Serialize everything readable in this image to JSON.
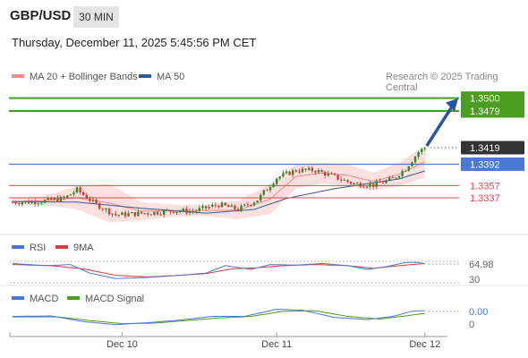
{
  "header": {
    "pair": "GBP/USD",
    "timeframe": "30 MIN",
    "datetime": "Thursday, December 11, 2025 5:45:56 PM CET"
  },
  "legend": {
    "bb": "MA 20 + Bollinger Bands",
    "ma50": "MA 50",
    "credit": "Research © 2025 Trading Central"
  },
  "rsi_legend": {
    "rsi": "RSI",
    "ma": "9MA"
  },
  "macd_legend": {
    "macd": "MACD",
    "signal": "MACD Signal"
  },
  "colors": {
    "resistance": "#4a9d1f",
    "support": "#e8414a",
    "pivot": "#4a78d6",
    "current": "#333333",
    "ma50": "#2f5b8f",
    "bb": "#f4a0a0",
    "up": "#2d8a2d",
    "down": "#d63a3a",
    "arrow": "#2856a0",
    "rsi": "#4a78d6",
    "rsi_ma": "#d63a3a",
    "macd": "#4a78d6",
    "macd_signal": "#4a9d1f"
  },
  "chart_data": [
    {
      "type": "candlestick",
      "title": "GBP/USD 30 MIN",
      "ylim": [
        1.328,
        1.352
      ],
      "x_ticks": [
        {
          "i": 34,
          "label": "Dec 10"
        },
        {
          "i": 82,
          "label": "Dec 11"
        },
        {
          "i": 128,
          "label": "Dec 12"
        }
      ],
      "levels": [
        {
          "value": 1.35,
          "label": "1.3500",
          "kind": "resistance"
        },
        {
          "value": 1.3479,
          "label": "1.3479",
          "kind": "resistance"
        },
        {
          "value": 1.3419,
          "label": "1.3419",
          "kind": "current"
        },
        {
          "value": 1.3392,
          "label": "1.3392",
          "kind": "pivot"
        },
        {
          "value": 1.3357,
          "label": "1.3357",
          "kind": "support"
        },
        {
          "value": 1.3337,
          "label": "1.3337",
          "kind": "support"
        }
      ],
      "forecast": {
        "from": [
          1.3419
        ],
        "to": [
          1.35
        ]
      },
      "close_points": [
        [
          0,
          1.333
        ],
        [
          8,
          1.3331
        ],
        [
          16,
          1.3336
        ],
        [
          20,
          1.335
        ],
        [
          26,
          1.3326
        ],
        [
          32,
          1.3309
        ],
        [
          38,
          1.3311
        ],
        [
          44,
          1.3313
        ],
        [
          50,
          1.3316
        ],
        [
          56,
          1.3315
        ],
        [
          64,
          1.3326
        ],
        [
          70,
          1.3318
        ],
        [
          76,
          1.3334
        ],
        [
          82,
          1.337
        ],
        [
          88,
          1.3382
        ],
        [
          94,
          1.3382
        ],
        [
          100,
          1.3371
        ],
        [
          106,
          1.336
        ],
        [
          112,
          1.3358
        ],
        [
          118,
          1.3368
        ],
        [
          122,
          1.3385
        ],
        [
          126,
          1.3412
        ],
        [
          128,
          1.3419
        ]
      ],
      "ma50_points": [
        [
          0,
          1.3331
        ],
        [
          20,
          1.333
        ],
        [
          40,
          1.332
        ],
        [
          60,
          1.3312
        ],
        [
          75,
          1.3318
        ],
        [
          85,
          1.3336
        ],
        [
          100,
          1.3352
        ],
        [
          110,
          1.336
        ],
        [
          120,
          1.3368
        ],
        [
          128,
          1.3381
        ]
      ],
      "bb_upper_points": [
        [
          0,
          1.3336
        ],
        [
          10,
          1.334
        ],
        [
          20,
          1.3356
        ],
        [
          30,
          1.336
        ],
        [
          40,
          1.333
        ],
        [
          50,
          1.3326
        ],
        [
          60,
          1.3326
        ],
        [
          70,
          1.3332
        ],
        [
          80,
          1.336
        ],
        [
          88,
          1.3392
        ],
        [
          96,
          1.3394
        ],
        [
          104,
          1.3392
        ],
        [
          112,
          1.3378
        ],
        [
          120,
          1.3395
        ],
        [
          128,
          1.3422
        ]
      ],
      "bb_lower_points": [
        [
          0,
          1.3325
        ],
        [
          10,
          1.3325
        ],
        [
          20,
          1.3318
        ],
        [
          30,
          1.3297
        ],
        [
          40,
          1.33
        ],
        [
          50,
          1.3306
        ],
        [
          60,
          1.3307
        ],
        [
          70,
          1.3302
        ],
        [
          80,
          1.331
        ],
        [
          88,
          1.3352
        ],
        [
          96,
          1.3361
        ],
        [
          104,
          1.3356
        ],
        [
          112,
          1.3349
        ],
        [
          120,
          1.3356
        ],
        [
          128,
          1.337
        ]
      ]
    },
    {
      "type": "line",
      "title": "RSI",
      "ylim": [
        30,
        80
      ],
      "reference_lines": [
        70,
        30
      ],
      "labels": [
        "64.98",
        "30"
      ],
      "series": [
        {
          "name": "RSI",
          "points": [
            [
              0,
              66
            ],
            [
              10,
              62
            ],
            [
              18,
              64
            ],
            [
              24,
              48
            ],
            [
              32,
              38
            ],
            [
              42,
              40
            ],
            [
              52,
              44
            ],
            [
              60,
              48
            ],
            [
              66,
              62
            ],
            [
              74,
              55
            ],
            [
              80,
              64
            ],
            [
              88,
              63
            ],
            [
              96,
              66
            ],
            [
              104,
              62
            ],
            [
              110,
              55
            ],
            [
              116,
              60
            ],
            [
              122,
              68
            ],
            [
              126,
              68
            ],
            [
              128,
              65
            ]
          ]
        },
        {
          "name": "9MA",
          "points": [
            [
              0,
              64
            ],
            [
              12,
              62
            ],
            [
              22,
              56
            ],
            [
              32,
              44
            ],
            [
              42,
              41
            ],
            [
              52,
              44
            ],
            [
              60,
              47
            ],
            [
              68,
              56
            ],
            [
              76,
              58
            ],
            [
              84,
              62
            ],
            [
              94,
              64
            ],
            [
              104,
              62
            ],
            [
              112,
              57
            ],
            [
              120,
              62
            ],
            [
              128,
              66
            ]
          ]
        }
      ]
    },
    {
      "type": "line",
      "title": "MACD",
      "ylim": [
        -0.003,
        0.0022
      ],
      "labels": [
        "0.00",
        "0"
      ],
      "series": [
        {
          "name": "MACD",
          "points": [
            [
              0,
              0.0002
            ],
            [
              12,
              0.0003
            ],
            [
              22,
              -0.0008
            ],
            [
              32,
              -0.0014
            ],
            [
              42,
              -0.001
            ],
            [
              52,
              -0.0005
            ],
            [
              62,
              0.0002
            ],
            [
              72,
              0.0002
            ],
            [
              82,
              0.0016
            ],
            [
              90,
              0.0014
            ],
            [
              100,
              0.0
            ],
            [
              110,
              -0.0004
            ],
            [
              118,
              0.0002
            ],
            [
              124,
              0.0012
            ],
            [
              128,
              0.0013
            ]
          ]
        },
        {
          "name": "MACD Signal",
          "points": [
            [
              0,
              0.0001
            ],
            [
              14,
              0.0001
            ],
            [
              24,
              -0.0006
            ],
            [
              34,
              -0.0012
            ],
            [
              44,
              -0.0011
            ],
            [
              54,
              -0.0006
            ],
            [
              64,
              -0.0001
            ],
            [
              74,
              0.0002
            ],
            [
              84,
              0.0012
            ],
            [
              94,
              0.0013
            ],
            [
              104,
              0.0002
            ],
            [
              114,
              -0.0003
            ],
            [
              122,
              0.0003
            ],
            [
              128,
              0.0008
            ]
          ]
        }
      ]
    }
  ]
}
